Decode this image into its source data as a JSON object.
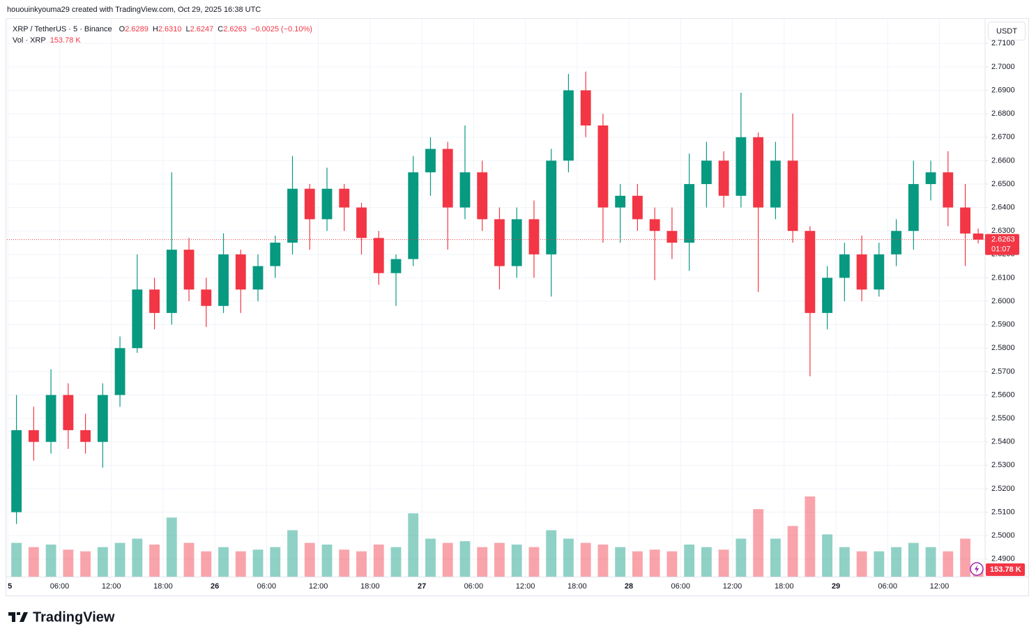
{
  "header": {
    "credit": "hououinkyouma29 created with TradingView.com, Oct 29, 2025 16:38 UTC"
  },
  "legend": {
    "symbol": "XRP / TetherUS · 5 · Binance",
    "items": [
      {
        "label": "O",
        "value": "2.6289"
      },
      {
        "label": "H",
        "value": "2.6310"
      },
      {
        "label": "L",
        "value": "2.6247"
      },
      {
        "label": "C",
        "value": "2.6263"
      }
    ],
    "change": "−0.0025 (−0.10%)",
    "volume_label": "Vol · XRP",
    "volume_value": "153.78 K"
  },
  "currency_button": "USDT",
  "countdown": "01:07",
  "volume_badge": "153.78 K",
  "logo": "TradingView",
  "chart_data": {
    "type": "candlestick",
    "x": [
      1,
      3,
      5,
      7,
      9,
      11,
      13,
      15,
      17,
      19,
      21,
      23,
      25,
      27,
      29,
      31,
      33,
      35,
      37,
      39,
      41,
      43,
      45,
      47,
      49,
      51,
      53,
      55,
      57,
      59,
      61,
      63,
      65,
      67,
      69,
      71,
      73,
      75,
      77,
      79,
      81,
      83,
      85,
      87,
      89,
      91,
      93,
      95,
      97,
      99,
      101,
      103,
      105,
      107,
      109,
      111,
      112.5
    ],
    "open": [
      2.51,
      2.545,
      2.54,
      2.56,
      2.545,
      2.54,
      2.56,
      2.58,
      2.605,
      2.595,
      2.622,
      2.605,
      2.598,
      2.62,
      2.605,
      2.615,
      2.625,
      2.648,
      2.635,
      2.648,
      2.64,
      2.627,
      2.612,
      2.618,
      2.655,
      2.665,
      2.64,
      2.655,
      2.635,
      2.615,
      2.635,
      2.62,
      2.66,
      2.69,
      2.675,
      2.64,
      2.645,
      2.635,
      2.63,
      2.625,
      2.65,
      2.66,
      2.645,
      2.67,
      2.64,
      2.66,
      2.63,
      2.595,
      2.61,
      2.62,
      2.605,
      2.62,
      2.63,
      2.65,
      2.655,
      2.64,
      2.6289
    ],
    "high": [
      2.56,
      2.555,
      2.571,
      2.565,
      2.552,
      2.565,
      2.585,
      2.62,
      2.61,
      2.655,
      2.627,
      2.61,
      2.629,
      2.622,
      2.62,
      2.628,
      2.662,
      2.65,
      2.657,
      2.65,
      2.642,
      2.63,
      2.62,
      2.662,
      2.67,
      2.668,
      2.675,
      2.66,
      2.64,
      2.64,
      2.643,
      2.665,
      2.697,
      2.698,
      2.68,
      2.65,
      2.65,
      2.64,
      2.64,
      2.663,
      2.668,
      2.664,
      2.689,
      2.672,
      2.668,
      2.68,
      2.632,
      2.615,
      2.625,
      2.628,
      2.625,
      2.635,
      2.66,
      2.66,
      2.664,
      2.65,
      2.631
    ],
    "low": [
      2.505,
      2.532,
      2.535,
      2.537,
      2.535,
      2.529,
      2.555,
      2.578,
      2.588,
      2.59,
      2.6,
      2.589,
      2.595,
      2.595,
      2.6,
      2.61,
      2.62,
      2.622,
      2.63,
      2.63,
      2.62,
      2.607,
      2.598,
      2.615,
      2.645,
      2.622,
      2.635,
      2.63,
      2.605,
      2.61,
      2.61,
      2.602,
      2.655,
      2.67,
      2.625,
      2.625,
      2.63,
      2.609,
      2.618,
      2.613,
      2.64,
      2.64,
      2.64,
      2.604,
      2.635,
      2.625,
      2.568,
      2.588,
      2.6,
      2.6,
      2.602,
      2.615,
      2.622,
      2.643,
      2.632,
      2.615,
      2.6247
    ],
    "close": [
      2.545,
      2.54,
      2.56,
      2.545,
      2.54,
      2.56,
      2.58,
      2.605,
      2.595,
      2.622,
      2.605,
      2.598,
      2.62,
      2.605,
      2.615,
      2.625,
      2.648,
      2.635,
      2.648,
      2.64,
      2.627,
      2.612,
      2.618,
      2.655,
      2.665,
      2.64,
      2.655,
      2.635,
      2.615,
      2.635,
      2.62,
      2.66,
      2.69,
      2.675,
      2.64,
      2.645,
      2.635,
      2.63,
      2.625,
      2.65,
      2.66,
      2.645,
      2.67,
      2.64,
      2.66,
      2.63,
      2.595,
      2.61,
      2.62,
      2.605,
      2.62,
      2.63,
      2.65,
      2.655,
      2.64,
      2.6289,
      2.6263
    ],
    "volume": [
      40,
      35,
      38,
      32,
      30,
      35,
      40,
      45,
      38,
      70,
      40,
      30,
      35,
      30,
      32,
      35,
      55,
      40,
      38,
      32,
      30,
      38,
      35,
      75,
      45,
      40,
      42,
      35,
      40,
      38,
      35,
      55,
      45,
      40,
      38,
      35,
      30,
      32,
      30,
      38,
      35,
      32,
      45,
      80,
      45,
      60,
      95,
      50,
      35,
      30,
      30,
      35,
      40,
      35,
      30,
      45,
      10
    ],
    "up_color": "#089981",
    "down_color": "#f23645",
    "xlim": [
      -0.1,
      113.3
    ],
    "xticks": [
      {
        "value": 0,
        "label": "5"
      },
      {
        "value": 6,
        "label": "06:00"
      },
      {
        "value": 12,
        "label": "12:00"
      },
      {
        "value": 18,
        "label": "18:00"
      },
      {
        "value": 24,
        "label": "26"
      },
      {
        "value": 30,
        "label": "06:00"
      },
      {
        "value": 36,
        "label": "12:00"
      },
      {
        "value": 42,
        "label": "18:00"
      },
      {
        "value": 48,
        "label": "27"
      },
      {
        "value": 54,
        "label": "06:00"
      },
      {
        "value": 60,
        "label": "12:00"
      },
      {
        "value": 66,
        "label": "18:00"
      },
      {
        "value": 72,
        "label": "28"
      },
      {
        "value": 78,
        "label": "06:00"
      },
      {
        "value": 84,
        "label": "12:00"
      },
      {
        "value": 90,
        "label": "18:00"
      },
      {
        "value": 96,
        "label": "29"
      },
      {
        "value": 102,
        "label": "06:00"
      },
      {
        "value": 108,
        "label": "12:00"
      }
    ],
    "ylim": [
      2.4825,
      2.7205
    ],
    "yticks": [
      {
        "value": 2.49,
        "label": "2.4900"
      },
      {
        "value": 2.5,
        "label": "2.5000"
      },
      {
        "value": 2.51,
        "label": "2.5100"
      },
      {
        "value": 2.52,
        "label": "2.5200"
      },
      {
        "value": 2.53,
        "label": "2.5300"
      },
      {
        "value": 2.54,
        "label": "2.5400"
      },
      {
        "value": 2.55,
        "label": "2.5500"
      },
      {
        "value": 2.56,
        "label": "2.5600"
      },
      {
        "value": 2.57,
        "label": "2.5700"
      },
      {
        "value": 2.58,
        "label": "2.5800"
      },
      {
        "value": 2.59,
        "label": "2.5900"
      },
      {
        "value": 2.6,
        "label": "2.6000"
      },
      {
        "value": 2.61,
        "label": "2.6100"
      },
      {
        "value": 2.62,
        "label": "2.6200"
      },
      {
        "value": 2.63,
        "label": "2.6300"
      },
      {
        "value": 2.64,
        "label": "2.6400"
      },
      {
        "value": 2.65,
        "label": "2.6500"
      },
      {
        "value": 2.66,
        "label": "2.6600"
      },
      {
        "value": 2.67,
        "label": "2.6700"
      },
      {
        "value": 2.68,
        "label": "2.6800"
      },
      {
        "value": 2.69,
        "label": "2.6900"
      },
      {
        "value": 2.7,
        "label": "2.7000"
      },
      {
        "value": 2.71,
        "label": "2.7100"
      }
    ],
    "grid": true
  }
}
